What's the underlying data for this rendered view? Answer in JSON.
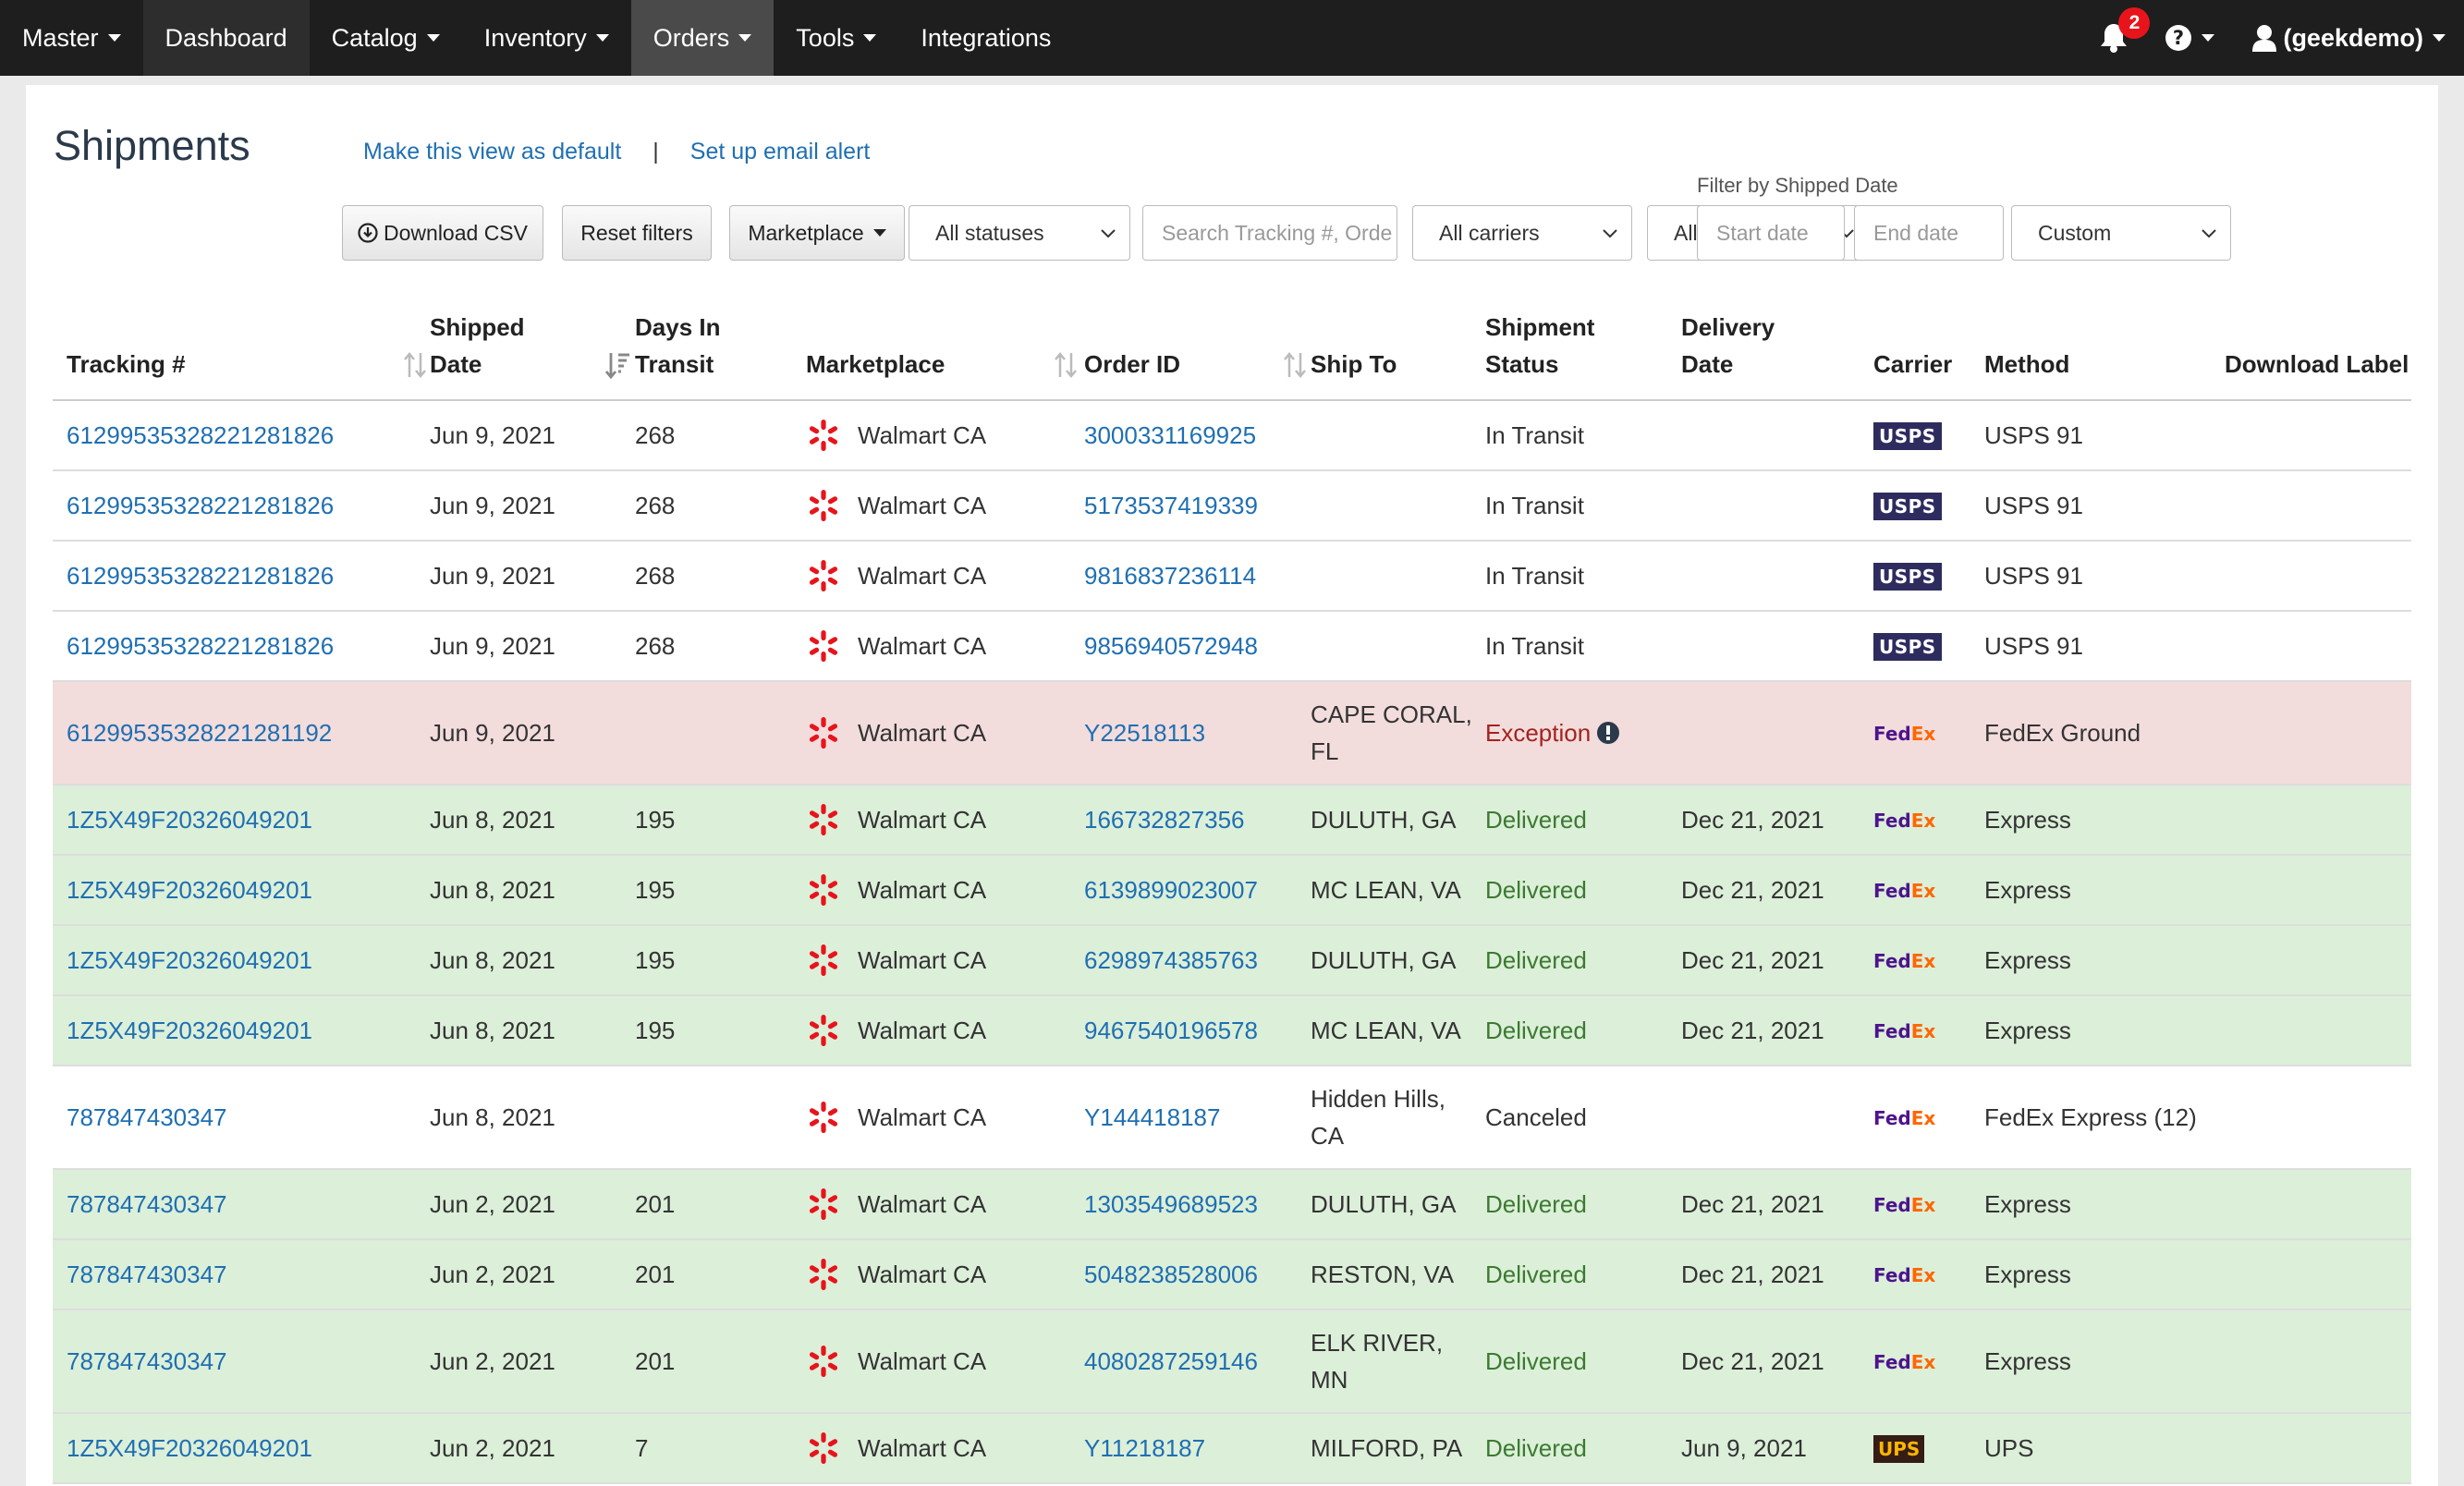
{
  "nav": {
    "items": [
      {
        "label": "Master",
        "caret": true,
        "name": "nav-master"
      },
      {
        "label": "Dashboard",
        "caret": false,
        "name": "nav-dashboard"
      },
      {
        "label": "Catalog",
        "caret": true,
        "name": "nav-catalog"
      },
      {
        "label": "Inventory",
        "caret": true,
        "name": "nav-inventory"
      },
      {
        "label": "Orders",
        "caret": true,
        "name": "nav-orders",
        "active": true
      },
      {
        "label": "Tools",
        "caret": true,
        "name": "nav-tools"
      },
      {
        "label": "Integrations",
        "caret": false,
        "name": "nav-integrations"
      }
    ],
    "notification_count": "2",
    "user_label": "(geekdemo)"
  },
  "page": {
    "title": "Shipments",
    "make_default_link": "Make this view as default",
    "separator": "|",
    "email_alert_link": "Set up email alert",
    "filter_date_label": "Filter by Shipped Date"
  },
  "toolbar": {
    "download_csv": "Download CSV",
    "reset_filters": "Reset filters",
    "marketplace": "Marketplace",
    "status_select": "All statuses",
    "search_placeholder": "Search Tracking #, Orde",
    "carrier_select": "All carriers",
    "method_select": "All methods",
    "start_date_placeholder": "Start date",
    "end_date_placeholder": "End date",
    "range_select": "Custom"
  },
  "table": {
    "headers": {
      "tracking": "Tracking #",
      "shipped_date_1": "Shipped",
      "shipped_date_2": "Date",
      "days_1": "Days In",
      "days_2": "Transit",
      "marketplace": "Marketplace",
      "order_id": "Order ID",
      "ship_to": "Ship To",
      "status_1": "Shipment",
      "status_2": "Status",
      "delivery_1": "Delivery",
      "delivery_2": "Date",
      "carrier": "Carrier",
      "method": "Method",
      "download_label": "Download Label"
    },
    "rows": [
      {
        "tracking": "61299535328221281826",
        "shipped": "Jun 9, 2021",
        "days": "268",
        "marketplace": "Walmart CA",
        "order_id": "3000331169925",
        "ship_to_1": "",
        "ship_to_2": "",
        "status": "In Transit",
        "status_type": "normal",
        "delivery": "",
        "carrier": "USPS",
        "carrier_type": "usps",
        "method": "USPS 91",
        "bg": "white",
        "tall": false
      },
      {
        "tracking": "61299535328221281826",
        "shipped": "Jun 9, 2021",
        "days": "268",
        "marketplace": "Walmart CA",
        "order_id": "5173537419339",
        "ship_to_1": "",
        "ship_to_2": "",
        "status": "In Transit",
        "status_type": "normal",
        "delivery": "",
        "carrier": "USPS",
        "carrier_type": "usps",
        "method": "USPS 91",
        "bg": "white",
        "tall": false
      },
      {
        "tracking": "61299535328221281826",
        "shipped": "Jun 9, 2021",
        "days": "268",
        "marketplace": "Walmart CA",
        "order_id": "9816837236114",
        "ship_to_1": "",
        "ship_to_2": "",
        "status": "In Transit",
        "status_type": "normal",
        "delivery": "",
        "carrier": "USPS",
        "carrier_type": "usps",
        "method": "USPS 91",
        "bg": "white",
        "tall": false
      },
      {
        "tracking": "61299535328221281826",
        "shipped": "Jun 9, 2021",
        "days": "268",
        "marketplace": "Walmart CA",
        "order_id": "9856940572948",
        "ship_to_1": "",
        "ship_to_2": "",
        "status": "In Transit",
        "status_type": "normal",
        "delivery": "",
        "carrier": "USPS",
        "carrier_type": "usps",
        "method": "USPS 91",
        "bg": "white",
        "tall": false
      },
      {
        "tracking": "61299535328221281192",
        "shipped": "Jun 9, 2021",
        "days": "",
        "marketplace": "Walmart CA",
        "order_id": "Y22518113",
        "ship_to_1": "CAPE CORAL,",
        "ship_to_2": "FL",
        "status": "Exception",
        "status_type": "exception",
        "delivery": "",
        "carrier": "FedEx",
        "carrier_type": "fedex",
        "method": "FedEx Ground",
        "bg": "red",
        "tall": true
      },
      {
        "tracking": "1Z5X49F20326049201",
        "shipped": "Jun 8, 2021",
        "days": "195",
        "marketplace": "Walmart CA",
        "order_id": "166732827356",
        "ship_to_1": "DULUTH, GA",
        "ship_to_2": "",
        "status": "Delivered",
        "status_type": "delivered",
        "delivery": "Dec 21, 2021",
        "carrier": "FedEx",
        "carrier_type": "fedex",
        "method": "Express",
        "bg": "green",
        "tall": false
      },
      {
        "tracking": "1Z5X49F20326049201",
        "shipped": "Jun 8, 2021",
        "days": "195",
        "marketplace": "Walmart CA",
        "order_id": "6139899023007",
        "ship_to_1": "MC LEAN, VA",
        "ship_to_2": "",
        "status": "Delivered",
        "status_type": "delivered",
        "delivery": "Dec 21, 2021",
        "carrier": "FedEx",
        "carrier_type": "fedex",
        "method": "Express",
        "bg": "green",
        "tall": false
      },
      {
        "tracking": "1Z5X49F20326049201",
        "shipped": "Jun 8, 2021",
        "days": "195",
        "marketplace": "Walmart CA",
        "order_id": "6298974385763",
        "ship_to_1": "DULUTH, GA",
        "ship_to_2": "",
        "status": "Delivered",
        "status_type": "delivered",
        "delivery": "Dec 21, 2021",
        "carrier": "FedEx",
        "carrier_type": "fedex",
        "method": "Express",
        "bg": "green",
        "tall": false
      },
      {
        "tracking": "1Z5X49F20326049201",
        "shipped": "Jun 8, 2021",
        "days": "195",
        "marketplace": "Walmart CA",
        "order_id": "9467540196578",
        "ship_to_1": "MC LEAN, VA",
        "ship_to_2": "",
        "status": "Delivered",
        "status_type": "delivered",
        "delivery": "Dec 21, 2021",
        "carrier": "FedEx",
        "carrier_type": "fedex",
        "method": "Express",
        "bg": "green",
        "tall": false
      },
      {
        "tracking": "787847430347",
        "shipped": "Jun 8, 2021",
        "days": "",
        "marketplace": "Walmart CA",
        "order_id": "Y144418187",
        "ship_to_1": "Hidden Hills,",
        "ship_to_2": "CA",
        "status": "Canceled",
        "status_type": "normal",
        "delivery": "",
        "carrier": "FedEx",
        "carrier_type": "fedex",
        "method": "FedEx Express (12)",
        "bg": "white",
        "tall": true
      },
      {
        "tracking": "787847430347",
        "shipped": "Jun 2, 2021",
        "days": "201",
        "marketplace": "Walmart CA",
        "order_id": "1303549689523",
        "ship_to_1": "DULUTH, GA",
        "ship_to_2": "",
        "status": "Delivered",
        "status_type": "delivered",
        "delivery": "Dec 21, 2021",
        "carrier": "FedEx",
        "carrier_type": "fedex",
        "method": "Express",
        "bg": "green",
        "tall": false
      },
      {
        "tracking": "787847430347",
        "shipped": "Jun 2, 2021",
        "days": "201",
        "marketplace": "Walmart CA",
        "order_id": "5048238528006",
        "ship_to_1": "RESTON, VA",
        "ship_to_2": "",
        "status": "Delivered",
        "status_type": "delivered",
        "delivery": "Dec 21, 2021",
        "carrier": "FedEx",
        "carrier_type": "fedex",
        "method": "Express",
        "bg": "green",
        "tall": false
      },
      {
        "tracking": "787847430347",
        "shipped": "Jun 2, 2021",
        "days": "201",
        "marketplace": "Walmart CA",
        "order_id": "4080287259146",
        "ship_to_1": "ELK RIVER,",
        "ship_to_2": "MN",
        "status": "Delivered",
        "status_type": "delivered",
        "delivery": "Dec 21, 2021",
        "carrier": "FedEx",
        "carrier_type": "fedex",
        "method": "Express",
        "bg": "green",
        "tall": true
      },
      {
        "tracking": "1Z5X49F20326049201",
        "shipped": "Jun 2, 2021",
        "days": "7",
        "marketplace": "Walmart CA",
        "order_id": "Y11218187",
        "ship_to_1": "MILFORD, PA",
        "ship_to_2": "",
        "status": "Delivered",
        "status_type": "delivered",
        "delivery": "Jun 9, 2021",
        "carrier": "UPS",
        "carrier_type": "ups",
        "method": "UPS",
        "bg": "green",
        "tall": false
      }
    ]
  },
  "colors": {
    "nav_bg": "#1e1e1e",
    "link": "#1f6fb2",
    "delivered": "#3b7a30",
    "exception": "#a3231f",
    "row_green": "#dcefd9",
    "row_red": "#f3dcdc",
    "walmart_spark": "#e8141c"
  },
  "icons": {
    "notifications": "bell-icon",
    "help": "question-circle-icon",
    "user": "user-icon",
    "download": "download-circle-icon",
    "sort": "sort-arrows-icon",
    "marketplace": "walmart-spark-icon",
    "exception": "exclamation-circle-icon"
  }
}
